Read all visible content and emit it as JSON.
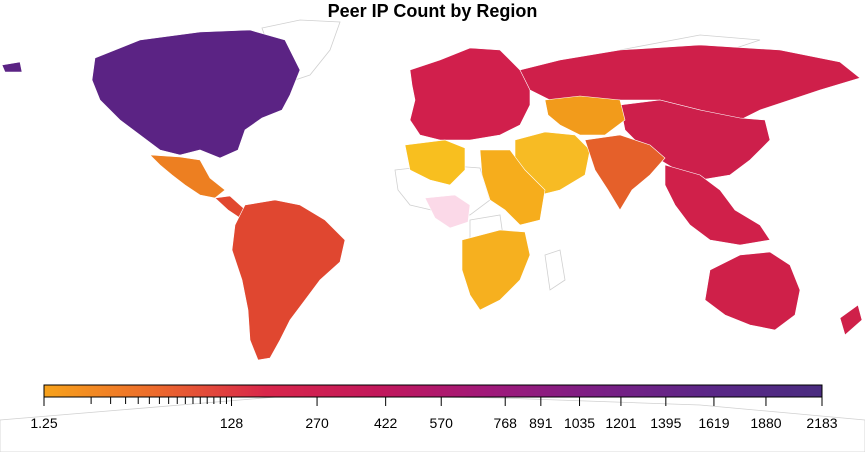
{
  "chart_data": {
    "type": "choropleth",
    "title": "Peer IP Count by Region",
    "colorbar": {
      "min": 1.25,
      "max": 2183,
      "tick_labels": [
        "1.25",
        "128",
        "270",
        "422",
        "570",
        "768",
        "891",
        "1035",
        "1201",
        "1395",
        "1619",
        "1880",
        "2183"
      ],
      "tick_values": [
        1.25,
        128,
        270,
        422,
        570,
        768,
        891,
        1035,
        1201,
        1395,
        1619,
        1880,
        2183
      ],
      "colors": [
        "#f7a21b",
        "#ec6a2c",
        "#d8264a",
        "#c2185b",
        "#a0197a",
        "#7a1f85",
        "#5a2787",
        "#4a2c80"
      ]
    },
    "regions": [
      {
        "name": "North America",
        "value": 2183,
        "color": "#5b2384"
      },
      {
        "name": "Russia",
        "value": 700,
        "color": "#cf1f4a"
      },
      {
        "name": "Europe",
        "value": 650,
        "color": "#d11f4c"
      },
      {
        "name": "China",
        "value": 720,
        "color": "#cd1f4b"
      },
      {
        "name": "Australia",
        "value": 690,
        "color": "#cf2049"
      },
      {
        "name": "Southeast Asia",
        "value": 680,
        "color": "#d0204a"
      },
      {
        "name": "South America",
        "value": 300,
        "color": "#e04730"
      },
      {
        "name": "Central America",
        "value": 300,
        "color": "#e1472f"
      },
      {
        "name": "India",
        "value": 220,
        "color": "#e5602a"
      },
      {
        "name": "Mexico",
        "value": 150,
        "color": "#ed7f21"
      },
      {
        "name": "Kazakhstan",
        "value": 120,
        "color": "#f29b1b"
      },
      {
        "name": "Middle East",
        "value": 60,
        "color": "#f7bb24"
      },
      {
        "name": "North Africa",
        "value": 50,
        "color": "#f8bf1f"
      },
      {
        "name": "East Africa",
        "value": 70,
        "color": "#f6ad1c"
      },
      {
        "name": "Southern Africa",
        "value": 60,
        "color": "#f6b01f"
      },
      {
        "name": "West Africa",
        "value": 1.25,
        "color": "#fbd9e8"
      }
    ]
  }
}
